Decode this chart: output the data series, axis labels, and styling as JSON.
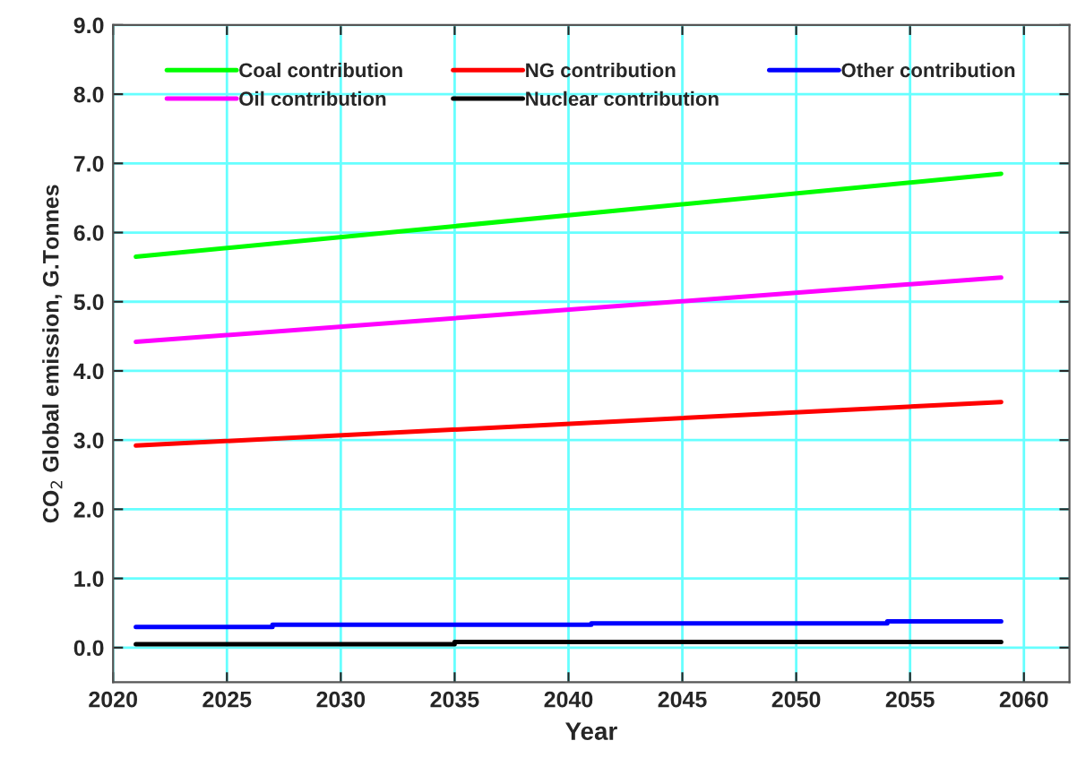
{
  "chart_data": {
    "type": "line",
    "xlabel": "Year",
    "ylabel": "CO$_{2}$ Global emission, G.Tonnes",
    "xlim": [
      2020,
      2062
    ],
    "xticks": [
      2020,
      2025,
      2030,
      2035,
      2040,
      2045,
      2050,
      2055,
      2060
    ],
    "ylim": [
      -0.5,
      9.0
    ],
    "yticks": [
      {
        "value": 0,
        "label": "0.0"
      },
      {
        "value": 1,
        "label": "1.0"
      },
      {
        "value": 2,
        "label": "2.0"
      },
      {
        "value": 3,
        "label": "3.0"
      },
      {
        "value": 4,
        "label": "4.0"
      },
      {
        "value": 5,
        "label": "5.0"
      },
      {
        "value": 6,
        "label": "6.0"
      },
      {
        "value": 7,
        "label": "7.0"
      },
      {
        "value": 8,
        "label": "8.0"
      },
      {
        "value": 9,
        "label": "9.0"
      }
    ],
    "grid": true,
    "legend": "top",
    "series": [
      {
        "name": "Coal contribution",
        "color": "#00ff00",
        "x": [
          2021,
          2059
        ],
        "values": [
          5.65,
          6.85
        ]
      },
      {
        "name": "Oil contribution",
        "color": "#ff00ff",
        "x": [
          2021,
          2059
        ],
        "values": [
          4.42,
          5.35
        ]
      },
      {
        "name": "NG contribution",
        "color": "#ff0000",
        "x": [
          2021,
          2059
        ],
        "values": [
          2.92,
          3.55
        ]
      },
      {
        "name": "Nuclear contribution",
        "color": "#000000",
        "x": [
          2021,
          2035,
          2035,
          2059
        ],
        "values": [
          0.05,
          0.05,
          0.08,
          0.08
        ]
      },
      {
        "name": "Other contribution",
        "color": "#0000ff",
        "x": [
          2021,
          2027,
          2027,
          2041,
          2041,
          2054,
          2054,
          2059
        ],
        "values": [
          0.3,
          0.3,
          0.33,
          0.33,
          0.35,
          0.35,
          0.38,
          0.38
        ]
      }
    ]
  }
}
